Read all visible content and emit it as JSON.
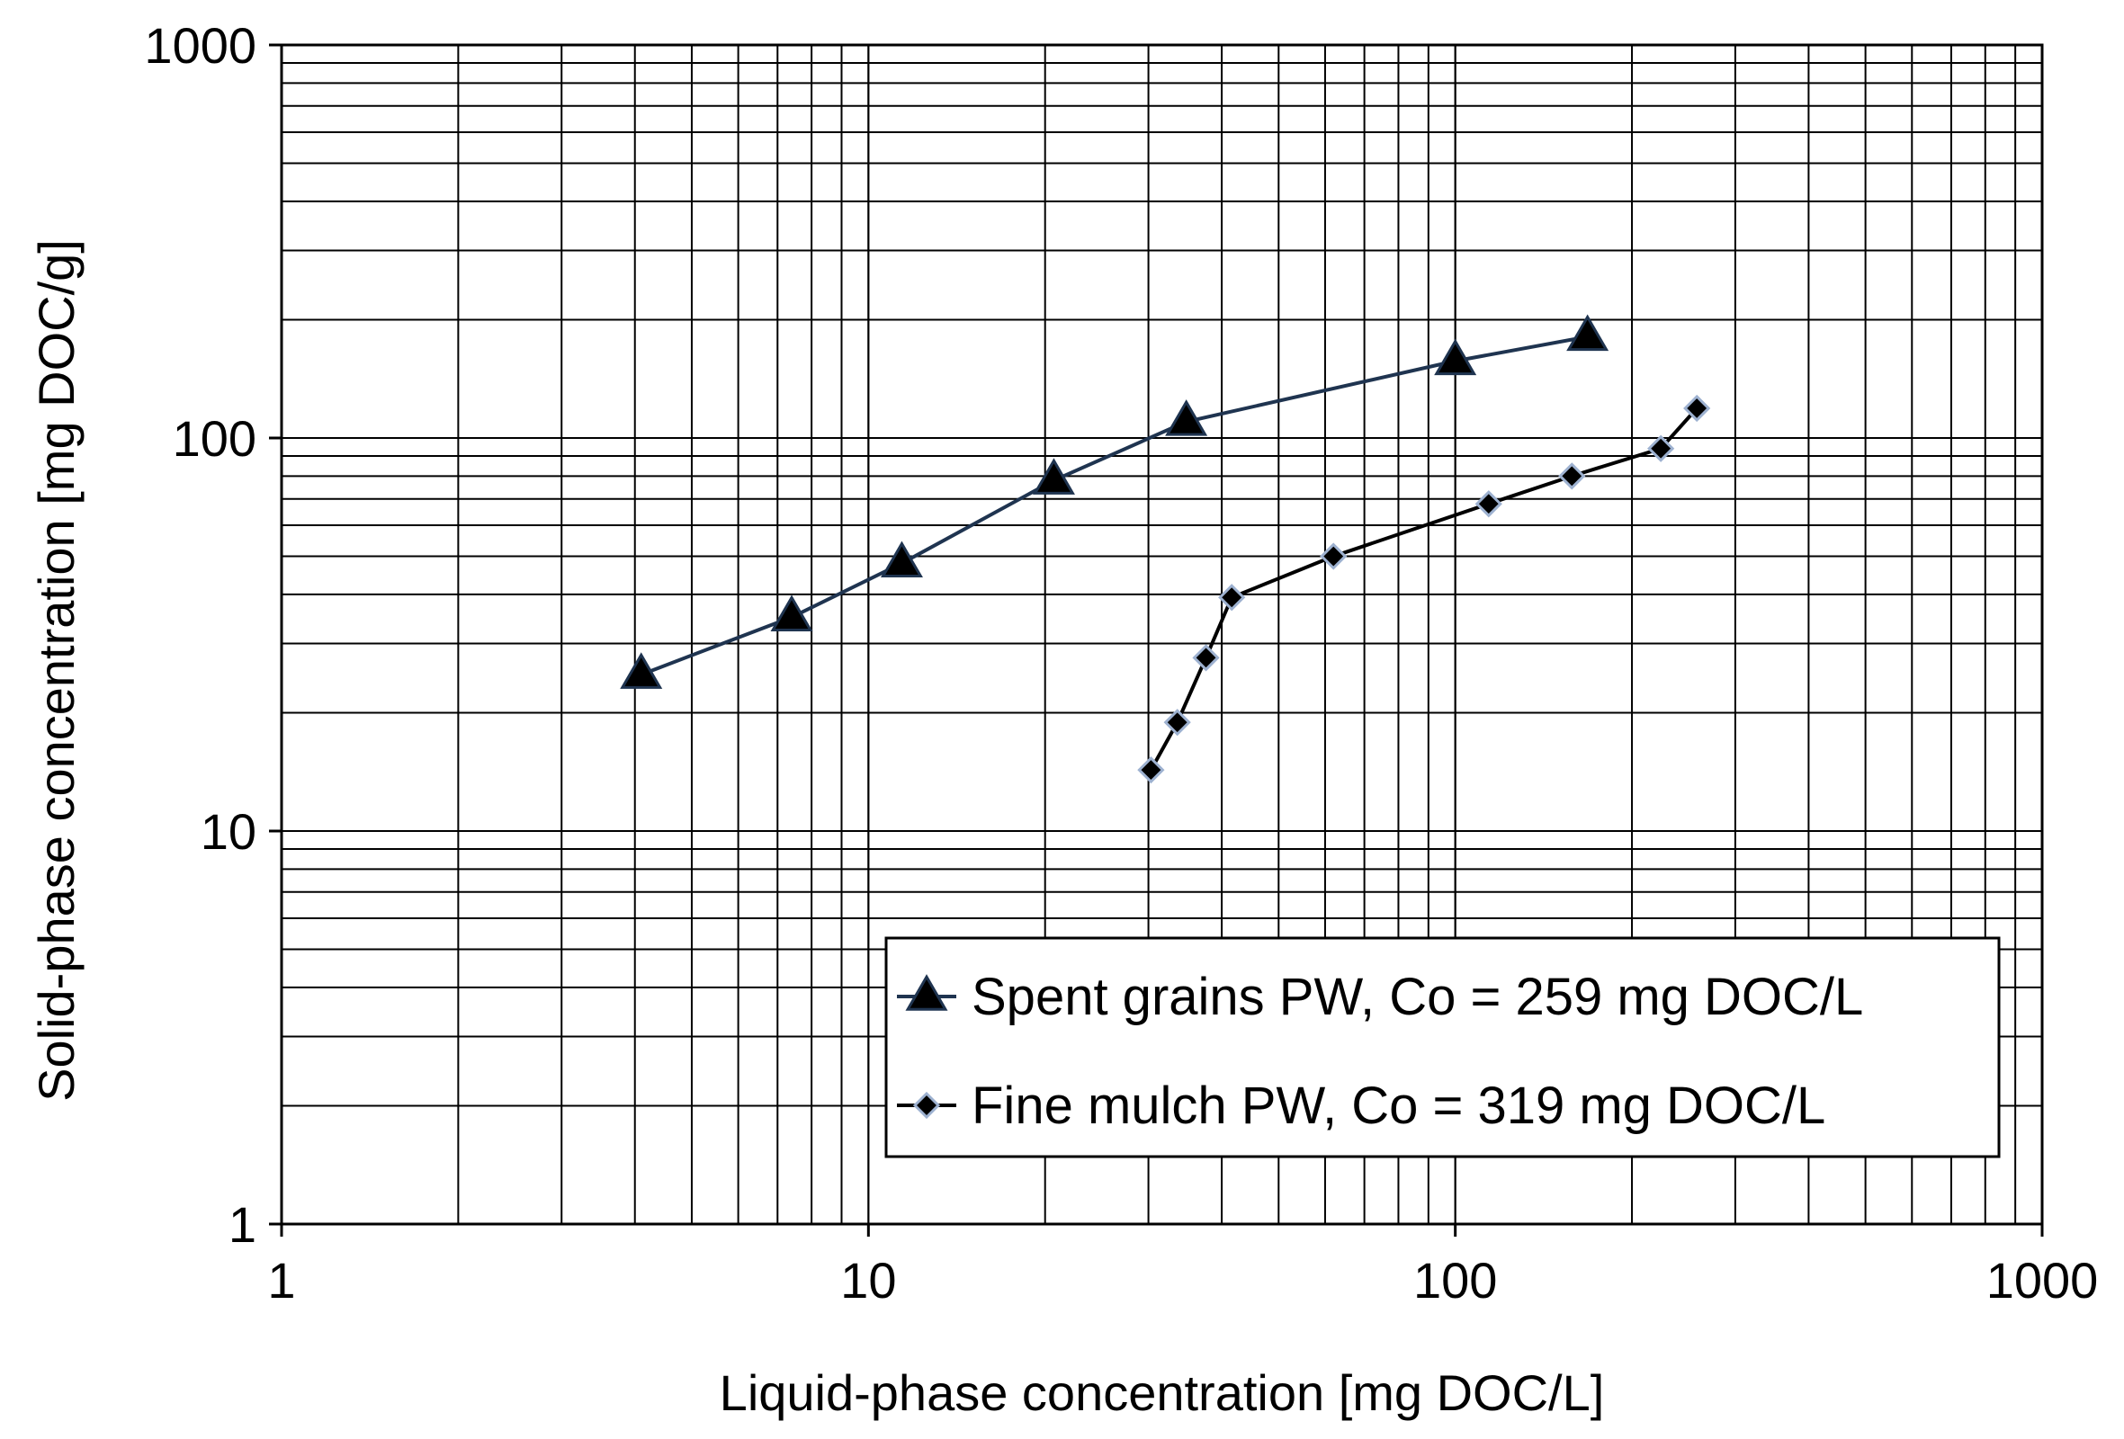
{
  "chart_data": {
    "type": "scatter",
    "xlabel": "Liquid-phase concentration [mg DOC/L]",
    "ylabel": "Solid-phase concentration  [mg DOC/g]",
    "xscale": "log",
    "yscale": "log",
    "xlim": [
      1,
      1000
    ],
    "ylim": [
      1,
      1000
    ],
    "x_ticks": [
      "1",
      "10",
      "100",
      "1000"
    ],
    "y_ticks": [
      "1",
      "10",
      "100",
      "1000"
    ],
    "grid": true,
    "legend_position": "bottom-right",
    "series": [
      {
        "name": "Spent grains PW, Co = 259 mg DOC/L",
        "marker": "triangle",
        "color": "#1f3450",
        "x": [
          4.1,
          7.4,
          11.4,
          20.7,
          34.8,
          100,
          168
        ],
        "y": [
          25,
          35,
          48,
          78,
          110,
          157,
          181
        ]
      },
      {
        "name": "Fine mulch PW, Co = 319 mg DOC/L",
        "marker": "diamond",
        "color": "#000000",
        "x": [
          30.3,
          33.6,
          37.6,
          41.6,
          62,
          114,
          158,
          224,
          258
        ],
        "y": [
          14.3,
          18.9,
          27.6,
          39.3,
          50,
          68,
          80,
          94,
          119
        ]
      }
    ]
  }
}
